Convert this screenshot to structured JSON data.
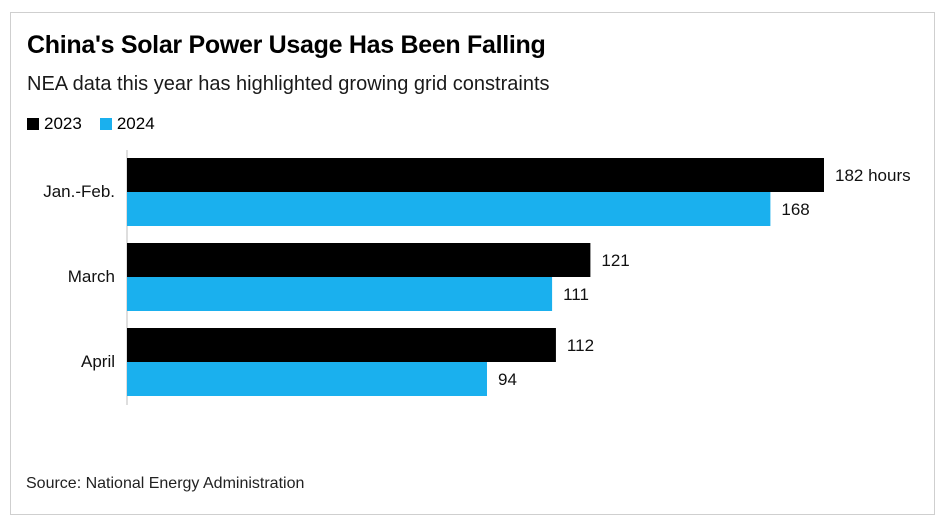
{
  "chart_data": {
    "type": "bar",
    "orientation": "horizontal",
    "title": "China's Solar Power Usage Has Been Falling",
    "subtitle": "NEA data this year has highlighted growing grid constraints",
    "categories": [
      "Jan.-Feb.",
      "March",
      "April"
    ],
    "series": [
      {
        "name": "2023",
        "color": "#000000",
        "values": [
          182,
          121,
          112
        ]
      },
      {
        "name": "2024",
        "color": "#1ab0ee",
        "values": [
          168,
          111,
          94
        ]
      }
    ],
    "value_labels": [
      [
        "182 hours",
        "121",
        "112"
      ],
      [
        "168",
        "111",
        "94"
      ]
    ],
    "unit": "hours",
    "xlabel": "",
    "ylabel": "",
    "xlim": [
      0,
      182
    ],
    "grid": false,
    "legend_position": "top-left",
    "source": "Source: National Energy Administration"
  }
}
